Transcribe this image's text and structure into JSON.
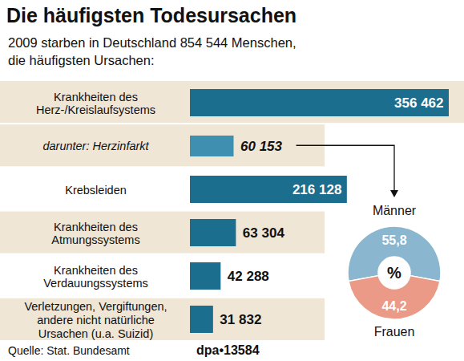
{
  "chart_data": [
    {
      "type": "bar",
      "title": "Die häufigsten Todesursachen",
      "subtitle": "2009 starben in Deutschland 854 544 Menschen,\ndie häufigsten Ursachen:",
      "source": "Quelle: Stat. Bundesamt",
      "credit": "dpa•13584",
      "orientation": "horizontal",
      "categories": [
        "Krankheiten des\nHerz-/Kreislaufsystems",
        "darunter: Herzinfarkt",
        "Krebsleiden",
        "Krankheiten des\nAtmungssystems",
        "Krankheiten des\nVerdauungssystems",
        "Verletzungen, Vergiftungen,\nandere nicht natürliche\nUrsachen (u.a. Suizid)"
      ],
      "values": [
        356462,
        60153,
        216128,
        63304,
        42288,
        31832
      ],
      "value_labels": [
        "356 462",
        "60 153",
        "216 128",
        "63 304",
        "42 288",
        "31 832"
      ],
      "colors": [
        "#1c6e8f",
        "#3f8fb1",
        "#1c6e8f",
        "#1c6e8f",
        "#1c6e8f",
        "#1c6e8f"
      ],
      "data_labels": true,
      "tick_labels": "y"
    },
    {
      "type": "pie",
      "categories": [
        "Männer",
        "Frauen"
      ],
      "values": [
        55.8,
        44.2
      ],
      "value_labels": [
        "55,8",
        "44,2"
      ],
      "colors": [
        "#8ab6cf",
        "#ea9a87"
      ],
      "annotation": "%",
      "data_labels": true
    }
  ]
}
